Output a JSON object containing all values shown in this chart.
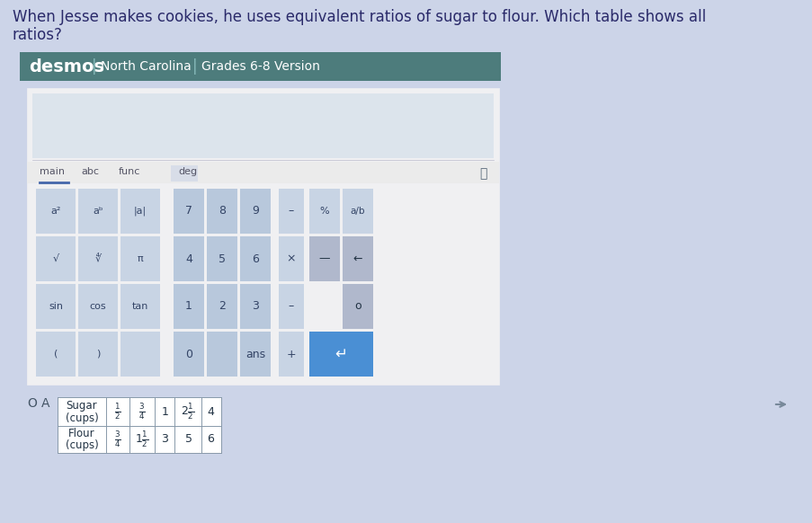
{
  "bg_color": "#ccd4e8",
  "title_line1": "When Jesse makes cookies, he uses equivalent ratios of sugar to flour. Which table shows all",
  "title_line2": "ratios?",
  "title_color": "#2a2a6a",
  "title_fontsize": 12.5,
  "header_bg": "#4d7c7c",
  "header_text": "desmos",
  "header_sep1": "North Carolina",
  "header_sep2": "Grades 6-8 Version",
  "calc_outer_bg": "#f0f0f2",
  "calc_inner_bg": "#dce4ec",
  "tab_underline_color": "#4466aa",
  "btn_light": "#c8d4e4",
  "btn_mid": "#b8c8dc",
  "btn_blue": "#4a8fd4",
  "btn_dark_blue": "#3a7fc4",
  "btn_text": "#334466",
  "table_line_color": "#8899aa",
  "cell_text_color": "#223344",
  "arrow_color": "#556677",
  "wrench_color": "#556677"
}
